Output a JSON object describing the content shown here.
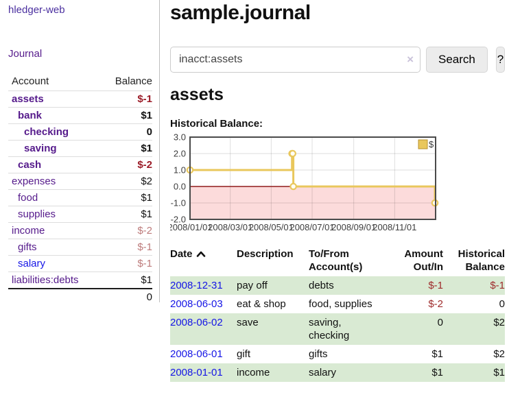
{
  "colors": {
    "brand_purple": "#4a2f9f",
    "link_purple": "#551a8b",
    "link_blue": "#1515e6",
    "negative_strong": "#9b1c28",
    "negative_soft": "#bd7b7b",
    "row_green": "#d9ead3",
    "series_gold": "#e9c75c"
  },
  "brand": {
    "title": "hledger-web"
  },
  "sidebar": {
    "journal_link": "Journal",
    "accounts": {
      "col_account": "Account",
      "col_balance": "Balance",
      "rows": [
        {
          "name": "assets",
          "depth": 1,
          "bold": true,
          "balance": "$-1",
          "balance_style": "neg-strong"
        },
        {
          "name": "bank",
          "depth": 2,
          "bold": true,
          "balance": "$1",
          "balance_style": "pos"
        },
        {
          "name": "checking",
          "depth": 3,
          "bold": true,
          "balance": "0",
          "balance_style": "pos"
        },
        {
          "name": "saving",
          "depth": 3,
          "bold": true,
          "balance": "$1",
          "balance_style": "pos"
        },
        {
          "name": "cash",
          "depth": 2,
          "bold": true,
          "balance": "$-2",
          "balance_style": "neg-strong"
        },
        {
          "name": "expenses",
          "depth": 1,
          "bold": false,
          "balance": "$2",
          "balance_style": "pos"
        },
        {
          "name": "food",
          "depth": 2,
          "bold": false,
          "balance": "$1",
          "balance_style": "pos"
        },
        {
          "name": "supplies",
          "depth": 2,
          "bold": false,
          "balance": "$1",
          "balance_style": "pos"
        },
        {
          "name": "income",
          "depth": 1,
          "bold": false,
          "balance": "$-2",
          "balance_style": "neg-soft"
        },
        {
          "name": "gifts",
          "depth": 2,
          "bold": false,
          "balance": "$-1",
          "balance_style": "neg-soft"
        },
        {
          "name": "salary",
          "depth": 2,
          "bold": false,
          "balance": "$-1",
          "balance_style": "neg-soft",
          "link_style": "unvisited"
        },
        {
          "name": "liabilities:debts",
          "depth": 1,
          "bold": false,
          "balance": "$1",
          "balance_style": "pos"
        }
      ],
      "total": "0"
    }
  },
  "header": {
    "title": "sample.journal"
  },
  "search": {
    "query": "inacct:assets",
    "clear_icon": "×",
    "search_button": "Search",
    "help_button": "?"
  },
  "account_page": {
    "title": "assets",
    "chart_heading": "Historical Balance:"
  },
  "chart_data": {
    "type": "line",
    "step": true,
    "title": "Historical Balance",
    "legend": {
      "label": "$",
      "position": "top-right"
    },
    "grid": true,
    "xlim": [
      "2008-01-01",
      "2009-01-01"
    ],
    "ylim": [
      -2,
      3
    ],
    "y_ticks": [
      3,
      2,
      1,
      0,
      -1,
      -2
    ],
    "x_ticks": [
      {
        "date": "2008-01-01",
        "label": "2008/01/01"
      },
      {
        "date": "2008-03-01",
        "label": "2008/03/01"
      },
      {
        "date": "2008-05-01",
        "label": "2008/05/01"
      },
      {
        "date": "2008-07-01",
        "label": "2008/07/01"
      },
      {
        "date": "2008-09-01",
        "label": "2008/09/01"
      },
      {
        "date": "2008-11-01",
        "label": "2008/11/01"
      }
    ],
    "series": [
      {
        "name": "$",
        "color": "#e9c75c",
        "points": [
          [
            "2008-01-01",
            1
          ],
          [
            "2008-06-01",
            2
          ],
          [
            "2008-06-02",
            2
          ],
          [
            "2008-06-03",
            0
          ],
          [
            "2008-12-31",
            -1
          ]
        ]
      }
    ],
    "colors": {
      "negative_region": "#fcdbdb",
      "zero_line": "#8f1b1b",
      "border": "#4a4a4a",
      "grid_line": "rgba(0,0,0,0.13)",
      "marker_fill": "#fffef5",
      "legend_border": "#b8912e"
    }
  },
  "register": {
    "headers": {
      "date": "Date",
      "description": "Description",
      "accounts": "To/From Account(s)",
      "amount": "Amount Out/In",
      "balance": "Historical Balance"
    },
    "rows": [
      {
        "date": "2008-12-31",
        "description": "pay off",
        "accounts": [
          "debts"
        ],
        "amount": "$-1",
        "amount_negative": true,
        "balance": "$-1",
        "balance_negative": true
      },
      {
        "date": "2008-06-03",
        "description": "eat & shop",
        "accounts": [
          "food, supplies"
        ],
        "amount": "$-2",
        "amount_negative": true,
        "balance": "0",
        "balance_negative": false
      },
      {
        "date": "2008-06-02",
        "description": "save",
        "accounts": [
          "saving,",
          "checking"
        ],
        "amount": "0",
        "amount_negative": false,
        "balance": "$2",
        "balance_negative": false
      },
      {
        "date": "2008-06-01",
        "description": "gift",
        "accounts": [
          "gifts"
        ],
        "amount": "$1",
        "amount_negative": false,
        "balance": "$2",
        "balance_negative": false
      },
      {
        "date": "2008-01-01",
        "description": "income",
        "accounts": [
          "salary"
        ],
        "amount": "$1",
        "amount_negative": false,
        "balance": "$1",
        "balance_negative": false
      }
    ]
  }
}
